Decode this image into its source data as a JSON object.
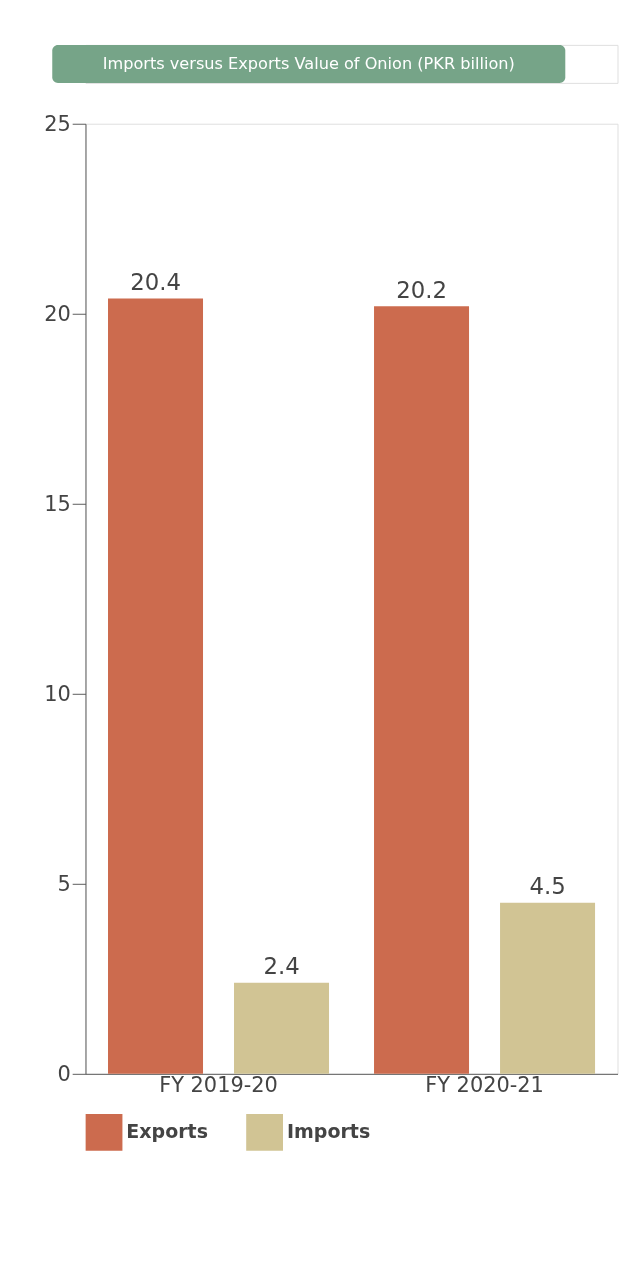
{
  "chart_data": {
    "type": "bar",
    "title": "Imports versus Exports Value of Onion (PKR billion)",
    "categories": [
      "FY 2019-20",
      "FY 2020-21"
    ],
    "series": [
      {
        "name": "Exports",
        "color": "#cc6b4e",
        "values": [
          20.4,
          20.2
        ]
      },
      {
        "name": "Imports",
        "color": "#d1c494",
        "values": [
          2.4,
          4.5
        ]
      }
    ],
    "ylim": [
      0,
      25
    ],
    "yticks": [
      0,
      5,
      10,
      15,
      20,
      25
    ],
    "grid": false,
    "legend": "bottom",
    "data_labels": true
  }
}
